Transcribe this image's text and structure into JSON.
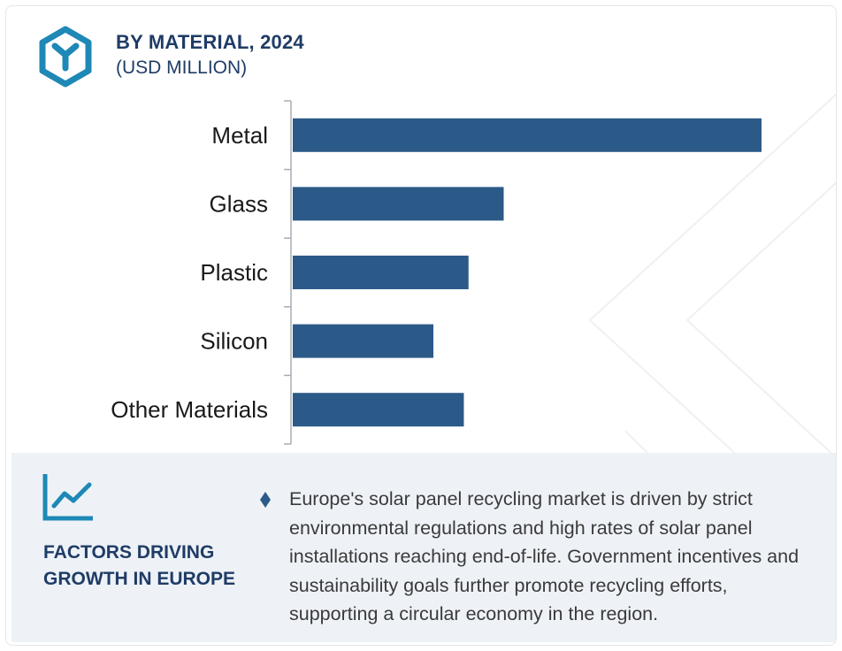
{
  "header": {
    "title": "BY MATERIAL, 2024",
    "subtitle": "(USD MILLION)",
    "icon": "hexagon-y-icon",
    "accent_color": "#1e88b6"
  },
  "chart_data": {
    "type": "bar",
    "orientation": "horizontal",
    "categories": [
      "Metal",
      "Glass",
      "Plastic",
      "Silicon",
      "Other Materials"
    ],
    "values": [
      100,
      45,
      37.5,
      30,
      36.5
    ],
    "bar_color": "#2c5a88",
    "title": "",
    "xlabel": "",
    "ylabel": "",
    "grid": false
  },
  "factors": {
    "icon": "trend-line-icon",
    "title": "FACTORS DRIVING\nGROWTH IN EUROPE",
    "bullet_icon": "diamond-bullet-icon",
    "text": "Europe's solar panel recycling market is driven by strict environmental regulations and high rates of solar panel installations reaching end-of-life. Government incentives and sustainability goals further promote recycling efforts, supporting a circular economy in the region.",
    "background_color": "#eef2f7"
  }
}
